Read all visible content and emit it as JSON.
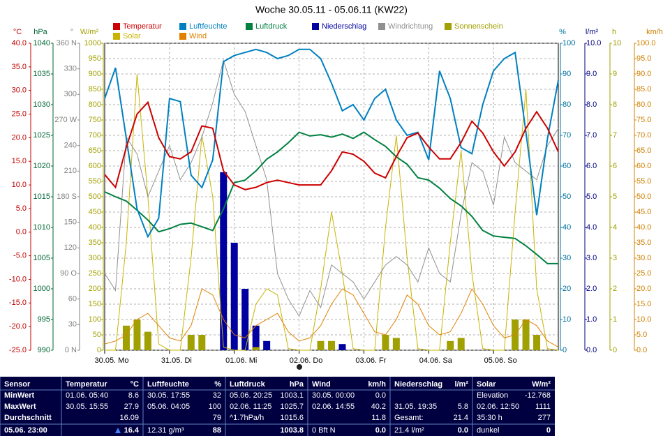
{
  "chart_data": {
    "type": "line",
    "title": "Woche 30.05.11 - 05.06.11 (KW22)",
    "xlim": [
      0,
      168
    ],
    "xticks": [
      {
        "value": 0,
        "label": "30.05. Mo"
      },
      {
        "value": 24,
        "label": "31.05. Di"
      },
      {
        "value": 48,
        "label": "01.06. Mi"
      },
      {
        "value": 72,
        "label": "02.06. Do"
      },
      {
        "value": 96,
        "label": "03.06. Fr"
      },
      {
        "value": 120,
        "label": "04.06. Sa"
      },
      {
        "value": 144,
        "label": "05.06. So"
      }
    ],
    "grid": true,
    "axes": [
      {
        "unit": "°C",
        "color": "#c00000",
        "lim": [
          -25,
          40
        ],
        "ticks": [
          {
            "value": -25,
            "label": "-25.0"
          },
          {
            "value": -20,
            "label": "-20.0"
          },
          {
            "value": -15,
            "label": "-15.0"
          },
          {
            "value": -10,
            "label": "-10.0"
          },
          {
            "value": -5,
            "label": "-5.0"
          },
          {
            "value": 0,
            "label": "0.0"
          },
          {
            "value": 5,
            "label": "5.0"
          },
          {
            "value": 10,
            "label": "10.0"
          },
          {
            "value": 15,
            "label": "15.0"
          },
          {
            "value": 20,
            "label": "20.0"
          },
          {
            "value": 25,
            "label": "25.0"
          },
          {
            "value": 30,
            "label": "30.0"
          },
          {
            "value": 35,
            "label": "35.0"
          },
          {
            "value": 40,
            "label": "40.0"
          }
        ]
      },
      {
        "unit": "hPa",
        "color": "#006633",
        "lim": [
          990,
          1040
        ],
        "ticks": [
          990,
          995,
          1000,
          1005,
          1010,
          1015,
          1020,
          1025,
          1030,
          1035,
          1040
        ]
      },
      {
        "unit": "°",
        "color": "#808080",
        "lim": [
          0,
          360
        ],
        "ticks": [
          {
            "value": 0,
            "label": "0 N"
          },
          30,
          60,
          {
            "value": 90,
            "label": "90 O"
          },
          120,
          150,
          {
            "value": 180,
            "label": "180 S"
          },
          210,
          240,
          {
            "value": 270,
            "label": "270 W"
          },
          300,
          330,
          {
            "value": 360,
            "label": "360 N"
          }
        ]
      },
      {
        "unit": "W/m²",
        "color": "#a0a000",
        "lim": [
          0,
          1000
        ],
        "grid": true,
        "ticks": [
          0,
          50,
          100,
          150,
          200,
          250,
          300,
          350,
          400,
          450,
          500,
          550,
          600,
          650,
          700,
          750,
          800,
          850,
          900,
          950,
          1000
        ]
      },
      {
        "unit": "%",
        "color": "#0070a0",
        "lim": [
          0,
          100
        ],
        "ticks": [
          0,
          10,
          20,
          30,
          40,
          50,
          60,
          70,
          80,
          90,
          100
        ]
      },
      {
        "unit": "l/m²",
        "color": "#000080",
        "lim": [
          0,
          10
        ],
        "ticks": [
          {
            "value": 0,
            "label": "0.0"
          },
          {
            "value": 1,
            "label": "1.0"
          },
          {
            "value": 2,
            "label": "2.0"
          },
          {
            "value": 3,
            "label": "3.0"
          },
          {
            "value": 4,
            "label": "4.0"
          },
          {
            "value": 5,
            "label": "5.0"
          },
          {
            "value": 6,
            "label": "6.0"
          },
          {
            "value": 7,
            "label": "7.0"
          },
          {
            "value": 8,
            "label": "8.0"
          },
          {
            "value": 9,
            "label": "9.0"
          },
          {
            "value": 10,
            "label": "10.0"
          }
        ]
      },
      {
        "unit": "h",
        "color": "#a0a000",
        "lim": [
          0,
          10
        ],
        "ticks": [
          0,
          1,
          2,
          3,
          4,
          5,
          6,
          7,
          8,
          9,
          10
        ]
      },
      {
        "unit": "km/h",
        "color": "#d08000",
        "lim": [
          0,
          100
        ],
        "ticks": [
          {
            "value": 0,
            "label": "0.0"
          },
          {
            "value": 5,
            "label": "5.0"
          },
          {
            "value": 10,
            "label": "10.0"
          },
          {
            "value": 15,
            "label": "15.0"
          },
          {
            "value": 20,
            "label": "20.0"
          },
          {
            "value": 25,
            "label": "25.0"
          },
          {
            "value": 30,
            "label": "30.0"
          },
          {
            "value": 35,
            "label": "35.0"
          },
          {
            "value": 40,
            "label": "40.0"
          },
          {
            "value": 45,
            "label": "45.0"
          },
          {
            "value": 50,
            "label": "50.0"
          },
          {
            "value": 55,
            "label": "55.0"
          },
          {
            "value": 60,
            "label": "60.0"
          },
          {
            "value": 65,
            "label": "65.0"
          },
          {
            "value": 70,
            "label": "70.0"
          },
          {
            "value": 75,
            "label": "75.0"
          },
          {
            "value": 80,
            "label": "80.0"
          },
          {
            "value": 85,
            "label": "85.0"
          },
          {
            "value": 90,
            "label": "90.0"
          },
          {
            "value": 95,
            "label": "95.0"
          },
          {
            "value": 100,
            "label": "100.0"
          }
        ]
      }
    ],
    "x": [
      0,
      4,
      8,
      12,
      16,
      20,
      24,
      28,
      32,
      36,
      40,
      44,
      48,
      52,
      56,
      60,
      64,
      68,
      72,
      76,
      80,
      84,
      88,
      92,
      96,
      100,
      104,
      108,
      112,
      116,
      120,
      124,
      128,
      132,
      136,
      140,
      144,
      148,
      152,
      156,
      160,
      164,
      168
    ],
    "series": [
      {
        "name": "Temperatur",
        "color": "#cc0000",
        "axis": 0,
        "kind": "line",
        "values": [
          12.2,
          9.5,
          18,
          25,
          27.5,
          20,
          16,
          15.5,
          17,
          22.5,
          22,
          13,
          10,
          9,
          9.5,
          10.5,
          11,
          10.5,
          10,
          10,
          10,
          13,
          17,
          16.5,
          15,
          12.5,
          11.5,
          16,
          20,
          21,
          18,
          15.5,
          15.5,
          19,
          23.5,
          21,
          17,
          14,
          17,
          22,
          25.5,
          22,
          17
        ]
      },
      {
        "name": "Luftfeuchte",
        "color": "#0080c0",
        "axis": 4,
        "kind": "line",
        "values": [
          82,
          92,
          69,
          46,
          37,
          43,
          82,
          81,
          57,
          53,
          62,
          94,
          96,
          97,
          98,
          97,
          95,
          96,
          98,
          98,
          95,
          87,
          78,
          80,
          75,
          82,
          85,
          75,
          70,
          71,
          62,
          91,
          82,
          66,
          64,
          80,
          91,
          95,
          97,
          71,
          44,
          69,
          88
        ]
      },
      {
        "name": "Luftdruck",
        "color": "#008040",
        "axis": 1,
        "kind": "line",
        "values": [
          1015.8,
          1015.0,
          1014.3,
          1012.8,
          1011.2,
          1009.3,
          1009.8,
          1010.5,
          1010.7,
          1010.1,
          1009.5,
          1013,
          1017.3,
          1017.7,
          1019.2,
          1021.1,
          1022.3,
          1023.8,
          1025.5,
          1024.9,
          1025.1,
          1024.7,
          1025.2,
          1024.5,
          1025.5,
          1024.3,
          1023.2,
          1021.5,
          1020.3,
          1018.1,
          1017.7,
          1016.4,
          1014.7,
          1013.5,
          1011.8,
          1009.5,
          1008.6,
          1008.4,
          1008.2,
          1007,
          1005.6,
          1004.1,
          1004.1
        ]
      },
      {
        "name": "Niederschlag",
        "color": "#0000a0",
        "axis": 5,
        "kind": "bar",
        "values": [
          0,
          0,
          0,
          0,
          0,
          0,
          0,
          0,
          0,
          0,
          0,
          5.8,
          3.5,
          2,
          0.8,
          0.3,
          0,
          0,
          0,
          0,
          0,
          0,
          0.2,
          0,
          0,
          0,
          0,
          0,
          0,
          0,
          0,
          0,
          0,
          0,
          0,
          0,
          0,
          0,
          0,
          0,
          0,
          0,
          0
        ]
      },
      {
        "name": "Windrichtung",
        "color": "#909090",
        "axis": 2,
        "kind": "line",
        "values": [
          90,
          70,
          250,
          230,
          180,
          210,
          240,
          200,
          220,
          250,
          290,
          340,
          300,
          280,
          240,
          200,
          90,
          60,
          40,
          70,
          50,
          100,
          90,
          80,
          60,
          80,
          100,
          110,
          100,
          80,
          120,
          90,
          80,
          160,
          220,
          210,
          170,
          250,
          220,
          210,
          200,
          240,
          260
        ]
      },
      {
        "name": "Sonnenschein",
        "color": "#a0a000",
        "axis": 6,
        "kind": "bar",
        "values": [
          0,
          0,
          0.8,
          1,
          0.6,
          0,
          0,
          0,
          0.5,
          0.5,
          0,
          0,
          0,
          0,
          0.1,
          0,
          0,
          0,
          0,
          0,
          0.3,
          0.3,
          0,
          0,
          0,
          0,
          0.5,
          0.4,
          0,
          0,
          0,
          0,
          0.3,
          0.4,
          0,
          0,
          0,
          0,
          1,
          1,
          0.5,
          0,
          0
        ]
      },
      {
        "name": "Solar",
        "color": "#c8b400",
        "axis": 3,
        "kind": "line",
        "values": [
          0,
          0,
          350,
          900,
          500,
          20,
          0,
          0,
          300,
          700,
          500,
          10,
          0,
          0,
          150,
          200,
          180,
          5,
          0,
          0,
          200,
          450,
          250,
          5,
          0,
          0,
          400,
          700,
          300,
          5,
          0,
          0,
          350,
          650,
          250,
          5,
          0,
          0,
          450,
          850,
          200,
          5,
          0
        ]
      },
      {
        "name": "Wind",
        "color": "#e08000",
        "axis": 7,
        "kind": "line",
        "values": [
          2,
          3,
          5,
          10,
          12,
          8,
          4,
          3,
          8,
          20,
          18,
          10,
          5,
          4,
          8,
          10,
          12,
          6,
          3,
          4,
          8,
          15,
          20,
          18,
          12,
          6,
          5,
          10,
          18,
          15,
          8,
          5,
          6,
          12,
          20,
          15,
          8,
          4,
          5,
          10,
          8,
          3,
          1
        ]
      }
    ]
  },
  "summary": {
    "columns": [
      {
        "title": "Sensor",
        "lines": [
          "MinWert",
          "MaxWert",
          "Durchschnitt",
          "05.06. 23:00"
        ]
      },
      {
        "title": "Temperatur",
        "unit": "°C",
        "lines": [
          {
            "l": "01.06. 05:40",
            "r": "8.6"
          },
          {
            "l": "30.05. 15:55",
            "r": "27.9"
          },
          {
            "r": "16.09"
          },
          {
            "r": "16.4"
          }
        ]
      },
      {
        "title": "Luftfeuchte",
        "unit": "%",
        "lines": [
          {
            "l": "30.05. 17:55",
            "r": "32"
          },
          {
            "l": "05.06. 04:05",
            "r": "100"
          },
          {
            "r": "79"
          },
          {
            "l": "12.31 g/m³",
            "r": "88"
          }
        ]
      },
      {
        "title": "Luftdruck",
        "unit": "hPa",
        "lines": [
          {
            "l": "05.06. 20:25",
            "r": "1003.1"
          },
          {
            "l": "02.06. 11:25",
            "r": "1025.7"
          },
          {
            "l": "^1.7hPa/h",
            "r": "1015.6"
          },
          {
            "r": "1003.8"
          }
        ]
      },
      {
        "title": "Wind",
        "unit": "km/h",
        "lines": [
          {
            "l": "30.05. 00:00",
            "r": "0.0"
          },
          {
            "l": "02.06. 14:55",
            "r": "40.2"
          },
          {
            "r": "11.8"
          },
          {
            "l": "0 Bft N",
            "r": "0.0"
          }
        ]
      },
      {
        "title": "Niederschlag",
        "unit": "l/m²",
        "lines": [
          null,
          {
            "l": "31.05. 19:35",
            "r": "5.8"
          },
          {
            "l": "Gesamt:",
            "r": "21.4"
          },
          {
            "l": "21.4 l/m²",
            "r": "0.0"
          }
        ]
      },
      {
        "title": "Solar",
        "unit": "W/m²",
        "lines": [
          {
            "l": "Elevation",
            "r": "-12.768"
          },
          {
            "l": "02.06. 12:50",
            "r": "1111"
          },
          {
            "l": "35:30 h",
            "r": "277"
          },
          {
            "l": "dunkel",
            "r": "0"
          }
        ]
      }
    ]
  }
}
